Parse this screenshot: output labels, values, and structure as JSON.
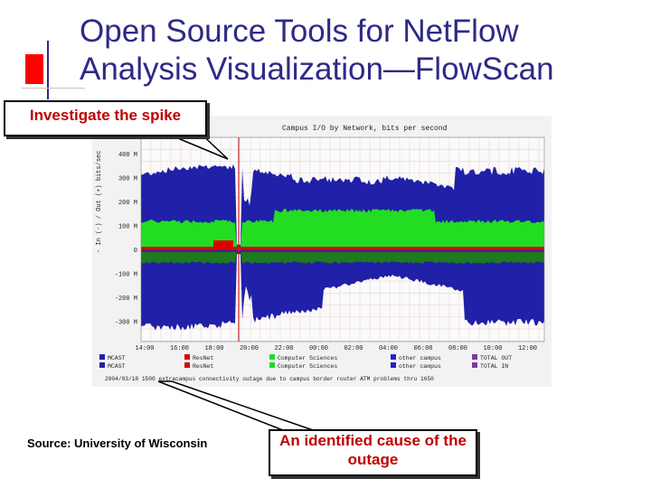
{
  "slide": {
    "title_line1": "Open Source Tools for NetFlow",
    "title_line2": "Analysis Visualization—FlowScan",
    "callout_spike": "Investigate the spike",
    "callout_cause": "An identified cause of the outage",
    "source": "Source: University of Wisconsin"
  },
  "graph": {
    "title": "Campus I/O by Network, bits per second",
    "y_label": "- In (-) / Out (+) bits/sec",
    "y_ticks": [
      "400 M",
      "300 M",
      "200 M",
      "100 M",
      "0",
      "-100 M",
      "-200 M",
      "-300 M"
    ],
    "x_ticks": [
      "14:00",
      "16:00",
      "18:00",
      "20:00",
      "22:00",
      "00:00",
      "02:00",
      "04:00",
      "06:00",
      "08:00",
      "10:00",
      "12:00"
    ],
    "legend_rows": [
      [
        "MCAST",
        "ResNet",
        "Computer Sciences",
        "other campus",
        "TOTAL OUT"
      ],
      [
        "MCAST",
        "ResNet",
        "Computer Sciences",
        "other campus",
        "TOTAL IN"
      ]
    ],
    "footnote": "2004/03/18 1500 extracampus connectivity outage due to campus border router ATM problems thru 1650",
    "colors": {
      "total": "#2020a8",
      "computer_sciences": "#22dd22",
      "resnet": "#dd0000",
      "grid_minor": "#f0c8c8",
      "marker": "#cc2222",
      "background": "#f4f4f4"
    }
  }
}
